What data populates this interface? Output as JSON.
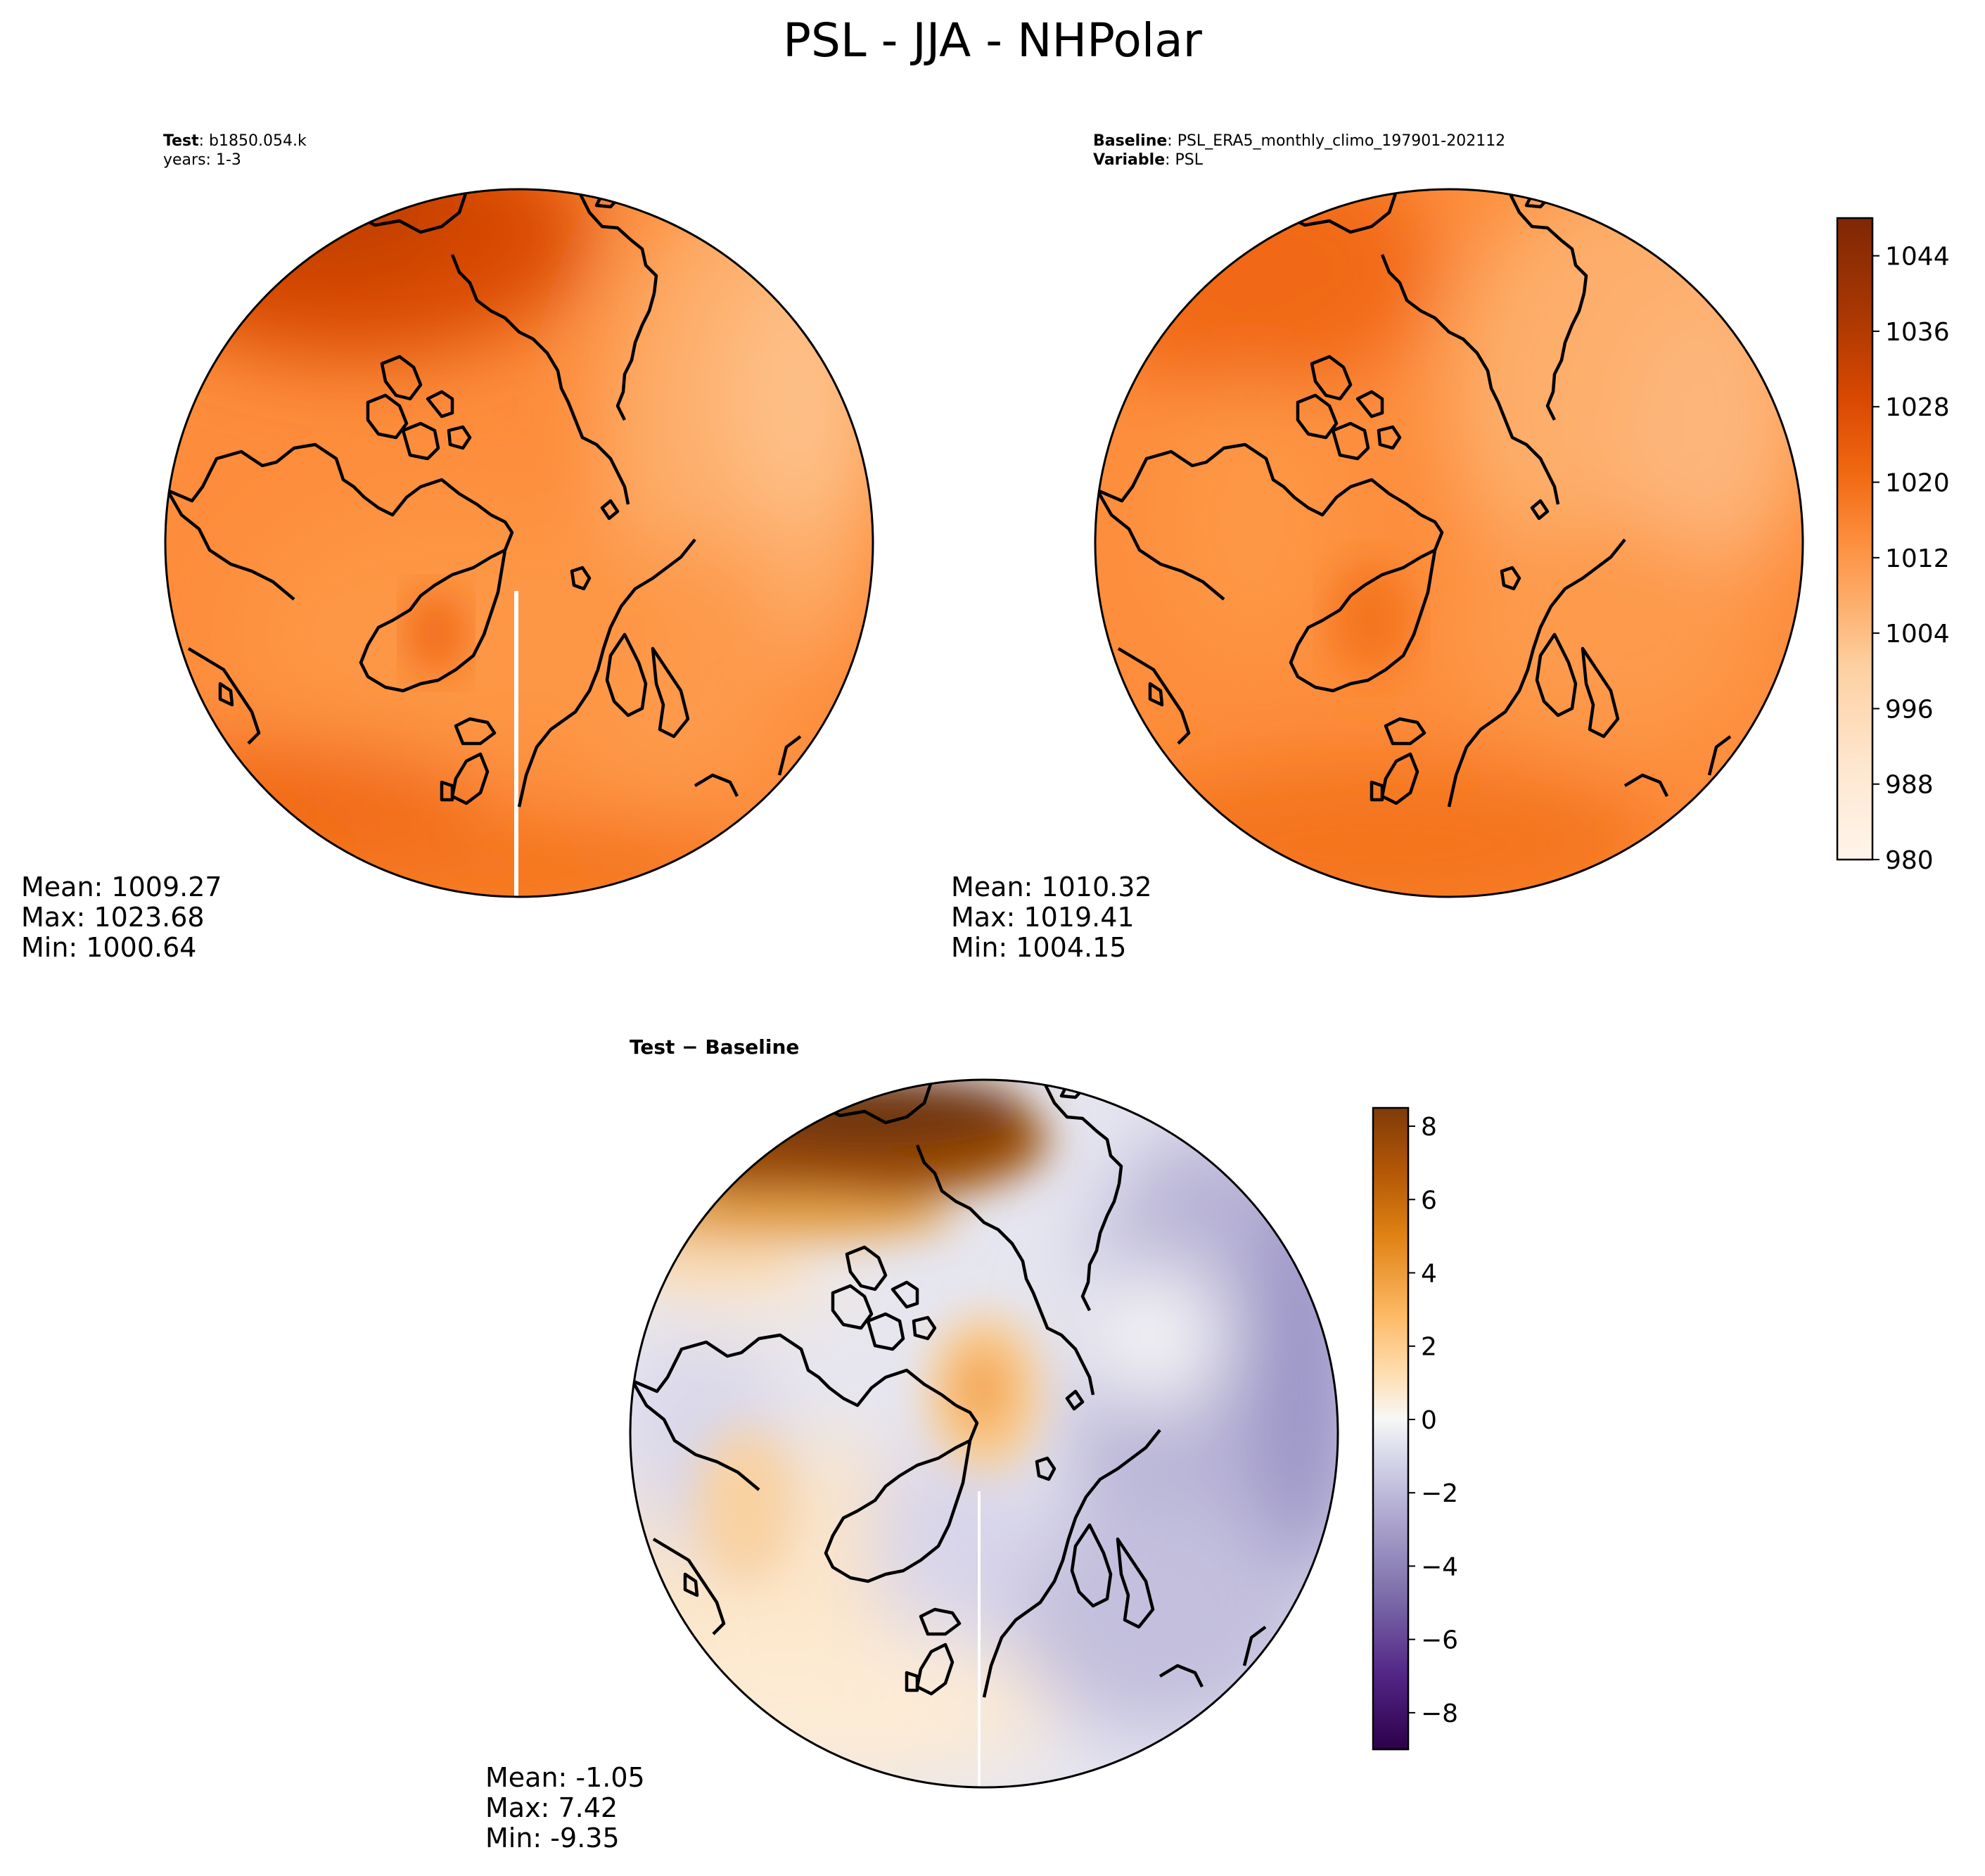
{
  "figure": {
    "title": "PSL - JJA - NHPolar"
  },
  "panels": {
    "test": {
      "header_bold": "Test",
      "header_text": ": b1850.054.k",
      "subheader_text": "years: 1-3",
      "stats": {
        "mean": "Mean: 1009.27",
        "max": "Max: 1023.68",
        "min": "Min: 1000.64"
      }
    },
    "baseline": {
      "header_bold": "Baseline",
      "header_text": ": PSL_ERA5_monthly_climo_197901-202112",
      "subheader_bold": "Variable",
      "subheader_text": ": PSL",
      "stats": {
        "mean": "Mean: 1010.32",
        "max": "Max: 1019.41",
        "min": "Min: 1004.15"
      }
    },
    "diff": {
      "header": "Test − Baseline",
      "stats": {
        "mean": "Mean: -1.05",
        "max": "Max:  7.42",
        "min": "Min: -9.35"
      }
    }
  },
  "colorbars": {
    "psl": {
      "ticks": [
        "1044",
        "1036",
        "1028",
        "1020",
        "1012",
        "1004",
        "996",
        "988",
        "980"
      ],
      "tick_values": [
        1044,
        1036,
        1028,
        1020,
        1012,
        1004,
        996,
        988,
        980
      ],
      "range": [
        980,
        1048
      ],
      "colormap": "Oranges",
      "colors": [
        "#fff5eb",
        "#fee6ce",
        "#fdd0a2",
        "#fdae6b",
        "#fd8d3c",
        "#f16913",
        "#d94801",
        "#a63603",
        "#7f2704"
      ]
    },
    "diff": {
      "ticks": [
        "8",
        "6",
        "4",
        "2",
        "0",
        "−2",
        "−4",
        "−6",
        "−8"
      ],
      "tick_values": [
        8,
        6,
        4,
        2,
        0,
        -2,
        -4,
        -6,
        -8
      ],
      "range": [
        -9,
        8.5
      ],
      "colormap": "PuOr_r",
      "colors": [
        "#2d004b",
        "#542788",
        "#8073ac",
        "#b2abd2",
        "#d8daeb",
        "#f7f7f7",
        "#fee0b6",
        "#fdb863",
        "#e08214",
        "#b35806",
        "#7f3b08"
      ]
    }
  },
  "chart_data": [
    {
      "type": "heatmap",
      "title": "Test: b1850.054.k",
      "projection": "north polar stereographic",
      "variable": "PSL",
      "mean": 1009.27,
      "max": 1023.68,
      "min": 1000.64
    },
    {
      "type": "heatmap",
      "title": "Baseline: PSL_ERA5_monthly_climo_197901-202112",
      "projection": "north polar stereographic",
      "variable": "PSL",
      "mean": 1010.32,
      "max": 1019.41,
      "min": 1004.15
    },
    {
      "type": "heatmap",
      "title": "Test − Baseline",
      "projection": "north polar stereographic",
      "variable": "PSL",
      "mean": -1.05,
      "max": 7.42,
      "min": -9.35
    }
  ]
}
